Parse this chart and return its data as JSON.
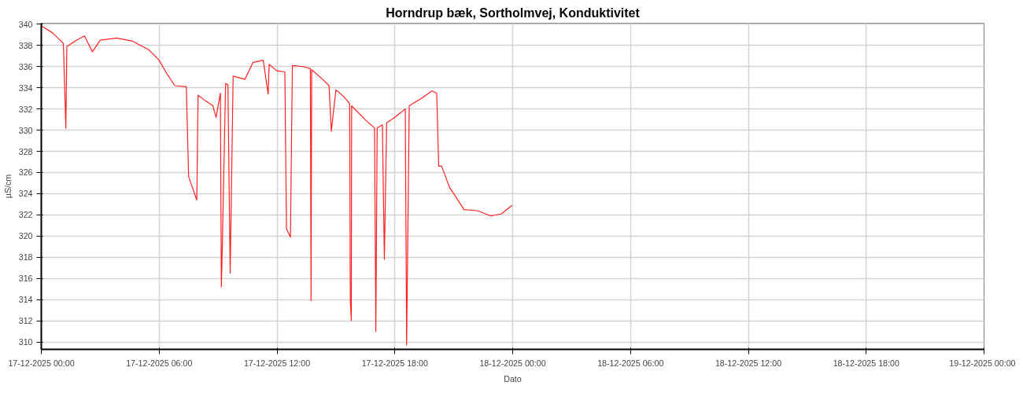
{
  "chart_data": {
    "type": "line",
    "title": "Horndrup bæk, Sortholmvej, Konduktivitet",
    "xlabel": "Dato",
    "ylabel": "µS/cm",
    "xlim": [
      "2025-12-17T00:00",
      "2025-12-19T00:00"
    ],
    "xticks": [
      {
        "value": "2025-12-17T00:00",
        "label": "17-12-2025 00:00"
      },
      {
        "value": "2025-12-17T06:00",
        "label": "17-12-2025 06:00"
      },
      {
        "value": "2025-12-17T12:00",
        "label": "17-12-2025 12:00"
      },
      {
        "value": "2025-12-17T18:00",
        "label": "17-12-2025 18:00"
      },
      {
        "value": "2025-12-18T00:00",
        "label": "18-12-2025 00:00"
      },
      {
        "value": "2025-12-18T06:00",
        "label": "18-12-2025 06:00"
      },
      {
        "value": "2025-12-18T12:00",
        "label": "18-12-2025 12:00"
      },
      {
        "value": "2025-12-18T18:00",
        "label": "18-12-2025 18:00"
      },
      {
        "value": "2025-12-19T00:00",
        "label": "19-12-2025 00:00"
      }
    ],
    "ylim": [
      309.3,
      340.1
    ],
    "yticks": [
      310,
      312,
      314,
      316,
      318,
      320,
      322,
      324,
      326,
      328,
      330,
      332,
      334,
      336,
      338,
      340
    ],
    "grid": true,
    "marker": "none",
    "line_style": "solid",
    "x": [
      "2025-12-17T00:00",
      "2025-12-17T00:02",
      "2025-12-17T00:34",
      "2025-12-17T01:07",
      "2025-12-17T01:08",
      "2025-12-17T01:15",
      "2025-12-17T01:18",
      "2025-12-17T01:48",
      "2025-12-17T02:12",
      "2025-12-17T02:36",
      "2025-12-17T03:00",
      "2025-12-17T03:50",
      "2025-12-17T04:39",
      "2025-12-17T05:28",
      "2025-12-17T06:00",
      "2025-12-17T06:24",
      "2025-12-17T06:48",
      "2025-12-17T07:23",
      "2025-12-17T07:30",
      "2025-12-17T07:55",
      "2025-12-17T07:59",
      "2025-12-17T08:20",
      "2025-12-17T08:44",
      "2025-12-17T08:54",
      "2025-12-17T09:07",
      "2025-12-17T09:10",
      "2025-12-17T09:12",
      "2025-12-17T09:23",
      "2025-12-17T09:30",
      "2025-12-17T09:37",
      "2025-12-17T09:46",
      "2025-12-17T10:22",
      "2025-12-17T10:47",
      "2025-12-17T11:18",
      "2025-12-17T11:33",
      "2025-12-17T11:36",
      "2025-12-17T12:00",
      "2025-12-17T12:24",
      "2025-12-17T12:29",
      "2025-12-17T12:41",
      "2025-12-17T12:47",
      "2025-12-17T13:21",
      "2025-12-17T13:42",
      "2025-12-17T13:44",
      "2025-12-17T13:46",
      "2025-12-17T14:19",
      "2025-12-17T14:39",
      "2025-12-17T14:46",
      "2025-12-17T15:00",
      "2025-12-17T15:23",
      "2025-12-17T15:42",
      "2025-12-17T15:44",
      "2025-12-17T15:47",
      "2025-12-17T15:48",
      "2025-12-17T16:10",
      "2025-12-17T16:29",
      "2025-12-17T16:58",
      "2025-12-17T17:02",
      "2025-12-17T17:06",
      "2025-12-17T17:22",
      "2025-12-17T17:28",
      "2025-12-17T17:35",
      "2025-12-17T17:59",
      "2025-12-17T18:32",
      "2025-12-17T18:36",
      "2025-12-17T18:44",
      "2025-12-17T19:21",
      "2025-12-17T19:53",
      "2025-12-17T20:08",
      "2025-12-17T20:14",
      "2025-12-17T20:23",
      "2025-12-17T20:47",
      "2025-12-17T21:15",
      "2025-12-17T21:31",
      "2025-12-17T22:12",
      "2025-12-17T22:53",
      "2025-12-17T23:26",
      "2025-12-17T23:58"
    ],
    "series": [
      {
        "color": "#ff2020",
        "values": [
          339.9,
          339.8,
          339.2,
          338.2,
          337.6,
          330.2,
          337.9,
          338.5,
          338.9,
          337.4,
          338.5,
          338.7,
          338.4,
          337.6,
          336.6,
          335.3,
          334.2,
          334.1,
          325.6,
          323.4,
          333.3,
          332.8,
          332.3,
          331.2,
          333.5,
          315.2,
          317.6,
          334.4,
          334.3,
          316.5,
          335.1,
          334.8,
          336.4,
          336.6,
          333.4,
          336.2,
          335.6,
          335.5,
          320.7,
          319.9,
          336.1,
          336.0,
          335.8,
          313.9,
          335.7,
          334.8,
          334.2,
          329.9,
          333.8,
          333.2,
          332.5,
          313.9,
          312.0,
          332.3,
          331.6,
          331.0,
          330.2,
          311.0,
          330.2,
          330.5,
          317.8,
          330.7,
          331.2,
          332.0,
          309.7,
          332.3,
          333.0,
          333.7,
          333.5,
          326.6,
          326.6,
          324.6,
          323.3,
          322.5,
          322.4,
          321.9,
          322.1,
          322.9
        ]
      }
    ]
  }
}
